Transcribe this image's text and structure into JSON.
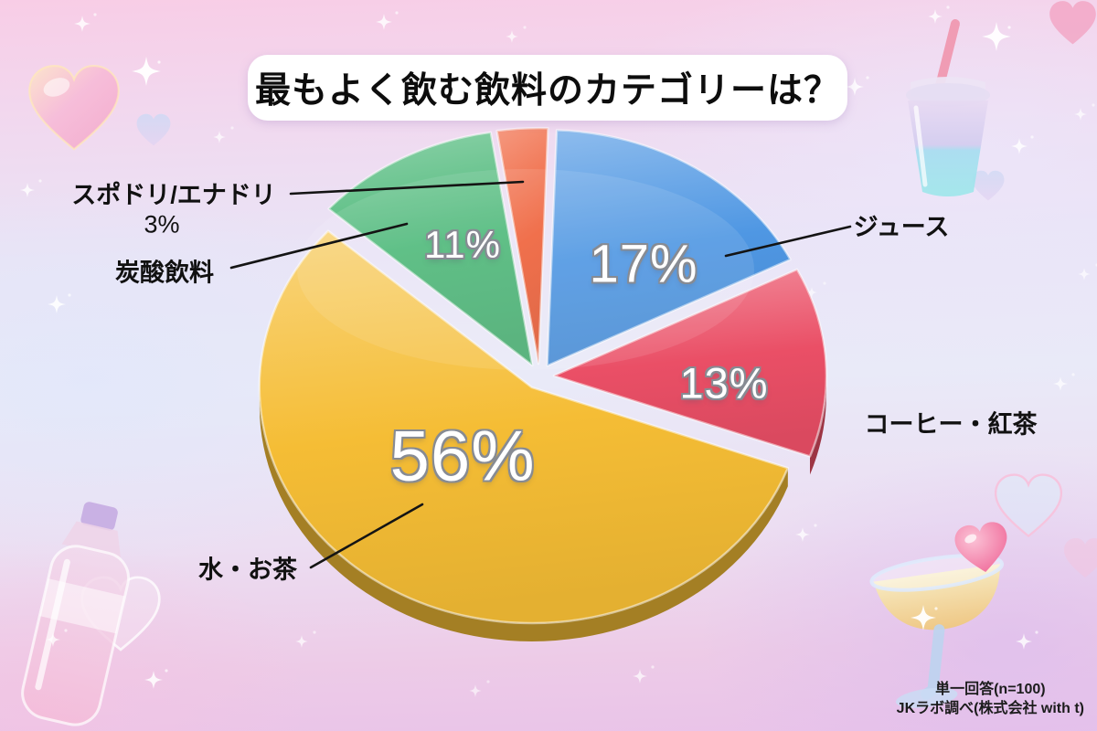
{
  "title": "最もよく飲む飲料のカテゴリーは？",
  "footer": {
    "line1": "単一回答(n=100)",
    "line2": "JKラボ調べ(株式会社 with t)"
  },
  "chart_data": {
    "type": "pie",
    "title": "最もよく飲む飲料のカテゴリーは？",
    "unit": "%",
    "n_label": "単一回答(n=100)",
    "source": "JKラボ調べ(株式会社 with t)",
    "direction": "clockwise",
    "start_angle_deg": 2,
    "style": "3d-glossy-exploded",
    "slices": [
      {
        "label": "ジュース",
        "value": 17,
        "pct_label": "17%",
        "color": "#4f97e3"
      },
      {
        "label": "コーヒー・紅茶",
        "value": 13,
        "pct_label": "13%",
        "color": "#ea4f66"
      },
      {
        "label": "水・お茶",
        "value": 56,
        "pct_label": "56%",
        "color": "#f5bd35"
      },
      {
        "label": "炭酸飲料",
        "value": 11,
        "pct_label": "11%",
        "color": "#4eb97a"
      },
      {
        "label": "スポドリ/エナドリ",
        "value": 3,
        "pct_label": "3%",
        "color": "#ef6038"
      }
    ],
    "background_theme_colors": {
      "pink": "#f8cde6",
      "lavender": "#e9eaf8",
      "purple": "#e9c3e9"
    }
  },
  "decor_icons": [
    "heart-icon",
    "sparkle-icon",
    "drink-cup-icon",
    "bottle-icon",
    "cocktail-glass-icon"
  ]
}
